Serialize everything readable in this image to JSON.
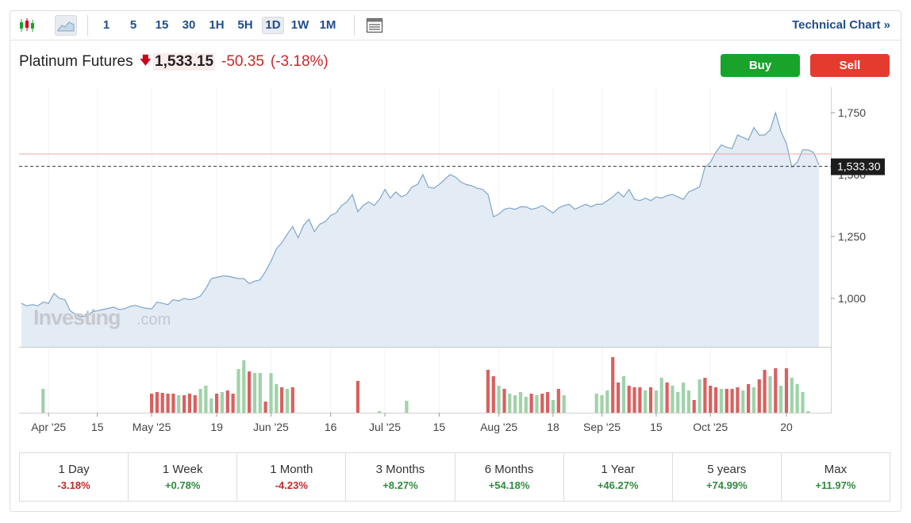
{
  "toolbar": {
    "timeframes": [
      "1",
      "5",
      "15",
      "30",
      "1H",
      "5H",
      "1D",
      "1W",
      "1M"
    ],
    "active_timeframe": "1D",
    "technical_chart_label": "Technical Chart »",
    "icons": [
      "candlestick-icon",
      "area-chart-icon",
      "table-icon"
    ]
  },
  "instrument": {
    "name": "Platinum Futures",
    "price": "1,533.15",
    "change": "-50.35",
    "change_pct": "(-3.18%)",
    "direction_icon": "down-arrow-icon"
  },
  "actions": {
    "buy_label": "Buy",
    "sell_label": "Sell"
  },
  "watermark": {
    "brand": "Investing",
    "suffix": ".com"
  },
  "colors": {
    "area_fill": "#e3ebf4",
    "line": "#7ea6cc",
    "up_volume": "#9fd2a8",
    "down_volume": "#d9605f",
    "buy": "#1aa32b",
    "sell": "#e53b2f",
    "reference_line": "#e8a8a2"
  },
  "chart_data": {
    "type": "area",
    "y_ticks": [
      "1,750",
      "1,500",
      "1,250",
      "1,000"
    ],
    "ylim": [
      830,
      1800
    ],
    "current_price_label": "1,533.30",
    "current_price": 1533.3,
    "reference_price": 1583.5,
    "x_tick_labels": [
      {
        "label": "Apr '25",
        "i": 5
      },
      {
        "label": "15",
        "i": 14
      },
      {
        "label": "May '25",
        "i": 24
      },
      {
        "label": "19",
        "i": 36
      },
      {
        "label": "Jun '25",
        "i": 46
      },
      {
        "label": "16",
        "i": 57
      },
      {
        "label": "Jul '25",
        "i": 67
      },
      {
        "label": "15",
        "i": 77
      },
      {
        "label": "Aug '25",
        "i": 88
      },
      {
        "label": "18",
        "i": 98
      },
      {
        "label": "Sep '25",
        "i": 107
      },
      {
        "label": "15",
        "i": 117
      },
      {
        "label": "Oct '25",
        "i": 127
      },
      {
        "label": "20",
        "i": 141
      }
    ],
    "price_series": [
      980,
      970,
      975,
      970,
      985,
      980,
      1020,
      1000,
      995,
      950,
      935,
      925,
      930,
      945,
      950,
      955,
      960,
      965,
      955,
      958,
      968,
      972,
      965,
      960,
      958,
      985,
      980,
      975,
      995,
      990,
      1000,
      995,
      1000,
      1010,
      1040,
      1080,
      1085,
      1090,
      1090,
      1085,
      1080,
      1080,
      1060,
      1070,
      1075,
      1110,
      1150,
      1200,
      1225,
      1260,
      1290,
      1245,
      1295,
      1320,
      1270,
      1300,
      1310,
      1335,
      1345,
      1375,
      1390,
      1420,
      1350,
      1375,
      1390,
      1375,
      1400,
      1440,
      1405,
      1430,
      1410,
      1420,
      1450,
      1460,
      1500,
      1450,
      1445,
      1460,
      1480,
      1500,
      1490,
      1470,
      1460,
      1455,
      1445,
      1440,
      1420,
      1330,
      1340,
      1360,
      1365,
      1360,
      1370,
      1370,
      1360,
      1365,
      1375,
      1360,
      1345,
      1365,
      1375,
      1380,
      1360,
      1370,
      1380,
      1370,
      1380,
      1380,
      1395,
      1410,
      1430,
      1410,
      1440,
      1400,
      1395,
      1405,
      1395,
      1410,
      1405,
      1415,
      1420,
      1410,
      1400,
      1430,
      1440,
      1450,
      1530,
      1550,
      1590,
      1620,
      1610,
      1605,
      1660,
      1650,
      1640,
      1690,
      1660,
      1660,
      1680,
      1750,
      1675,
      1625,
      1530,
      1550,
      1600,
      1600,
      1590,
      1540
    ],
    "volume_series": [
      {
        "i": 4,
        "v": 30,
        "up": true
      },
      {
        "i": 24,
        "v": 24,
        "up": false
      },
      {
        "i": 25,
        "v": 26,
        "up": false
      },
      {
        "i": 26,
        "v": 25,
        "up": false
      },
      {
        "i": 27,
        "v": 24,
        "up": false
      },
      {
        "i": 28,
        "v": 24,
        "up": false
      },
      {
        "i": 29,
        "v": 22,
        "up": true
      },
      {
        "i": 30,
        "v": 22,
        "up": false
      },
      {
        "i": 31,
        "v": 24,
        "up": false
      },
      {
        "i": 32,
        "v": 22,
        "up": false
      },
      {
        "i": 33,
        "v": 30,
        "up": true
      },
      {
        "i": 34,
        "v": 34,
        "up": true
      },
      {
        "i": 35,
        "v": 18,
        "up": true
      },
      {
        "i": 36,
        "v": 24,
        "up": false
      },
      {
        "i": 37,
        "v": 26,
        "up": true
      },
      {
        "i": 38,
        "v": 28,
        "up": false
      },
      {
        "i": 39,
        "v": 24,
        "up": false
      },
      {
        "i": 40,
        "v": 55,
        "up": true
      },
      {
        "i": 41,
        "v": 66,
        "up": true
      },
      {
        "i": 42,
        "v": 52,
        "up": false
      },
      {
        "i": 43,
        "v": 50,
        "up": true
      },
      {
        "i": 44,
        "v": 50,
        "up": true
      },
      {
        "i": 45,
        "v": 14,
        "up": false
      },
      {
        "i": 46,
        "v": 50,
        "up": true
      },
      {
        "i": 47,
        "v": 36,
        "up": true
      },
      {
        "i": 48,
        "v": 32,
        "up": false
      },
      {
        "i": 49,
        "v": 30,
        "up": true
      },
      {
        "i": 50,
        "v": 32,
        "up": false
      },
      {
        "i": 62,
        "v": 40,
        "up": false
      },
      {
        "i": 66,
        "v": 2,
        "up": true
      },
      {
        "i": 71,
        "v": 15,
        "up": true
      },
      {
        "i": 86,
        "v": 54,
        "up": false
      },
      {
        "i": 87,
        "v": 46,
        "up": false
      },
      {
        "i": 88,
        "v": 34,
        "up": true
      },
      {
        "i": 89,
        "v": 30,
        "up": false
      },
      {
        "i": 90,
        "v": 24,
        "up": true
      },
      {
        "i": 91,
        "v": 22,
        "up": true
      },
      {
        "i": 92,
        "v": 26,
        "up": true
      },
      {
        "i": 93,
        "v": 20,
        "up": true
      },
      {
        "i": 94,
        "v": 24,
        "up": false
      },
      {
        "i": 95,
        "v": 22,
        "up": true
      },
      {
        "i": 96,
        "v": 24,
        "up": false
      },
      {
        "i": 97,
        "v": 26,
        "up": false
      },
      {
        "i": 98,
        "v": 16,
        "up": true
      },
      {
        "i": 99,
        "v": 30,
        "up": false
      },
      {
        "i": 100,
        "v": 22,
        "up": true
      },
      {
        "i": 106,
        "v": 24,
        "up": true
      },
      {
        "i": 107,
        "v": 22,
        "up": true
      },
      {
        "i": 108,
        "v": 28,
        "up": true
      },
      {
        "i": 109,
        "v": 70,
        "up": false
      },
      {
        "i": 110,
        "v": 38,
        "up": false
      },
      {
        "i": 111,
        "v": 46,
        "up": true
      },
      {
        "i": 112,
        "v": 34,
        "up": false
      },
      {
        "i": 113,
        "v": 32,
        "up": false
      },
      {
        "i": 114,
        "v": 32,
        "up": false
      },
      {
        "i": 115,
        "v": 28,
        "up": true
      },
      {
        "i": 116,
        "v": 32,
        "up": false
      },
      {
        "i": 117,
        "v": 28,
        "up": true
      },
      {
        "i": 118,
        "v": 44,
        "up": true
      },
      {
        "i": 119,
        "v": 38,
        "up": false
      },
      {
        "i": 120,
        "v": 34,
        "up": true
      },
      {
        "i": 121,
        "v": 26,
        "up": true
      },
      {
        "i": 122,
        "v": 38,
        "up": true
      },
      {
        "i": 123,
        "v": 28,
        "up": true
      },
      {
        "i": 124,
        "v": 16,
        "up": false
      },
      {
        "i": 125,
        "v": 42,
        "up": true
      },
      {
        "i": 126,
        "v": 44,
        "up": false
      },
      {
        "i": 127,
        "v": 34,
        "up": false
      },
      {
        "i": 128,
        "v": 32,
        "up": false
      },
      {
        "i": 129,
        "v": 30,
        "up": true
      },
      {
        "i": 130,
        "v": 30,
        "up": false
      },
      {
        "i": 131,
        "v": 30,
        "up": false
      },
      {
        "i": 132,
        "v": 32,
        "up": false
      },
      {
        "i": 133,
        "v": 28,
        "up": true
      },
      {
        "i": 134,
        "v": 36,
        "up": false
      },
      {
        "i": 135,
        "v": 32,
        "up": true
      },
      {
        "i": 136,
        "v": 42,
        "up": false
      },
      {
        "i": 137,
        "v": 54,
        "up": false
      },
      {
        "i": 138,
        "v": 46,
        "up": true
      },
      {
        "i": 139,
        "v": 56,
        "up": false
      },
      {
        "i": 140,
        "v": 34,
        "up": true
      },
      {
        "i": 141,
        "v": 56,
        "up": false
      },
      {
        "i": 142,
        "v": 44,
        "up": true
      },
      {
        "i": 143,
        "v": 36,
        "up": true
      },
      {
        "i": 144,
        "v": 26,
        "up": true
      },
      {
        "i": 145,
        "v": 2,
        "up": true
      }
    ]
  },
  "performance": [
    {
      "label": "1 Day",
      "value": "-3.18%",
      "positive": false
    },
    {
      "label": "1 Week",
      "value": "+0.78%",
      "positive": true
    },
    {
      "label": "1 Month",
      "value": "-4.23%",
      "positive": false
    },
    {
      "label": "3 Months",
      "value": "+8.27%",
      "positive": true
    },
    {
      "label": "6 Months",
      "value": "+54.18%",
      "positive": true
    },
    {
      "label": "1 Year",
      "value": "+46.27%",
      "positive": true
    },
    {
      "label": "5 years",
      "value": "+74.99%",
      "positive": true
    },
    {
      "label": "Max",
      "value": "+11.97%",
      "positive": true
    }
  ]
}
